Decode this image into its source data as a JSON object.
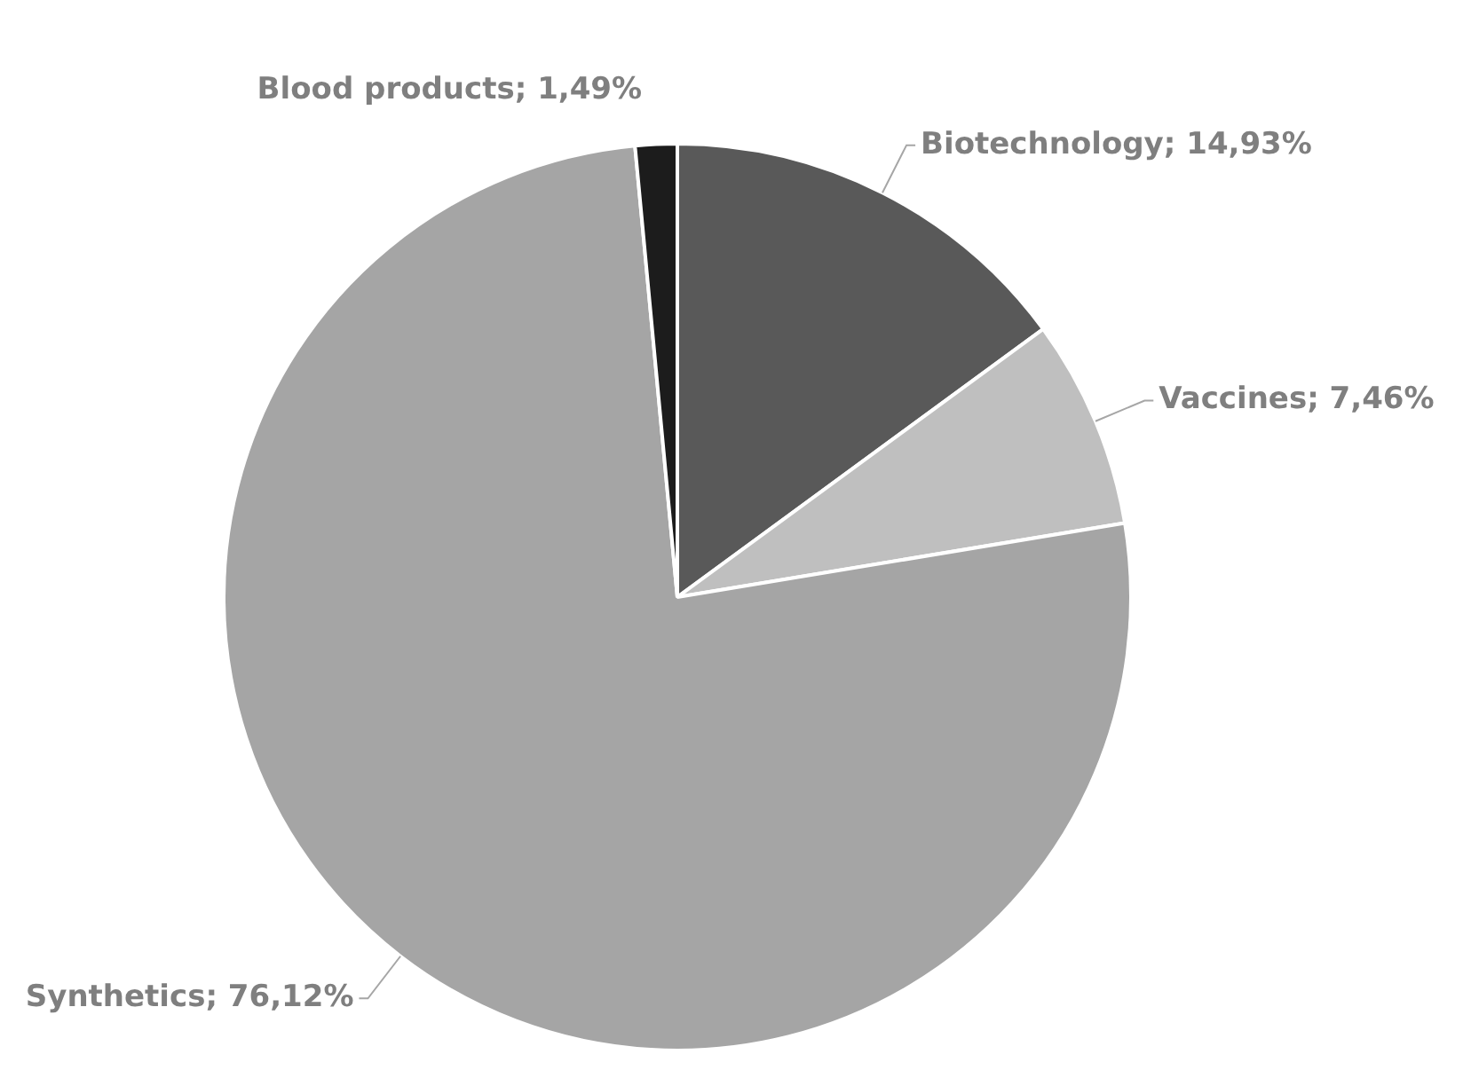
{
  "chart_data": {
    "type": "pie",
    "categories": [
      "Biotechnology",
      "Vaccines",
      "Synthetics",
      "Blood products"
    ],
    "values": [
      14.93,
      7.46,
      76.12,
      1.49
    ],
    "colors": [
      "#595959",
      "#bfbfbf",
      "#a5a5a5",
      "#1c1c1c"
    ],
    "value_labels": [
      "14,93%",
      "7,46%",
      "76,12%",
      "1,49%"
    ],
    "legend": false
  }
}
